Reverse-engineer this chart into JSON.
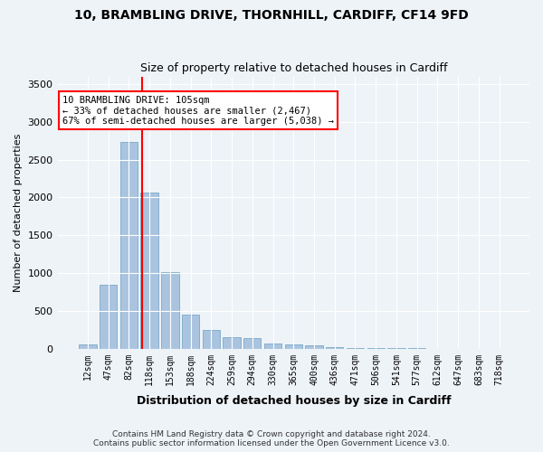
{
  "title1": "10, BRAMBLING DRIVE, THORNHILL, CARDIFF, CF14 9FD",
  "title2": "Size of property relative to detached houses in Cardiff",
  "xlabel": "Distribution of detached houses by size in Cardiff",
  "ylabel": "Number of detached properties",
  "categories": [
    "12sqm",
    "47sqm",
    "82sqm",
    "118sqm",
    "153sqm",
    "188sqm",
    "224sqm",
    "259sqm",
    "294sqm",
    "330sqm",
    "365sqm",
    "400sqm",
    "436sqm",
    "471sqm",
    "506sqm",
    "541sqm",
    "577sqm",
    "612sqm",
    "647sqm",
    "683sqm",
    "718sqm"
  ],
  "values": [
    55,
    850,
    2730,
    2070,
    1010,
    455,
    245,
    155,
    145,
    70,
    55,
    40,
    25,
    15,
    10,
    8,
    5,
    3,
    2,
    2,
    1
  ],
  "bar_color": "#aac4e0",
  "bar_edge_color": "#6a9ec0",
  "vline_x_index": 2.65,
  "vline_color": "red",
  "annotation_title": "10 BRAMBLING DRIVE: 105sqm",
  "annotation_line1": "← 33% of detached houses are smaller (2,467)",
  "annotation_line2": "67% of semi-detached houses are larger (5,038) →",
  "annotation_box_color": "white",
  "annotation_box_edge": "red",
  "ylim": [
    0,
    3600
  ],
  "yticks": [
    0,
    500,
    1000,
    1500,
    2000,
    2500,
    3000,
    3500
  ],
  "footer1": "Contains HM Land Registry data © Crown copyright and database right 2024.",
  "footer2": "Contains public sector information licensed under the Open Government Licence v3.0.",
  "bg_color": "#eef3f8",
  "plot_bg_color": "#eef3f8"
}
